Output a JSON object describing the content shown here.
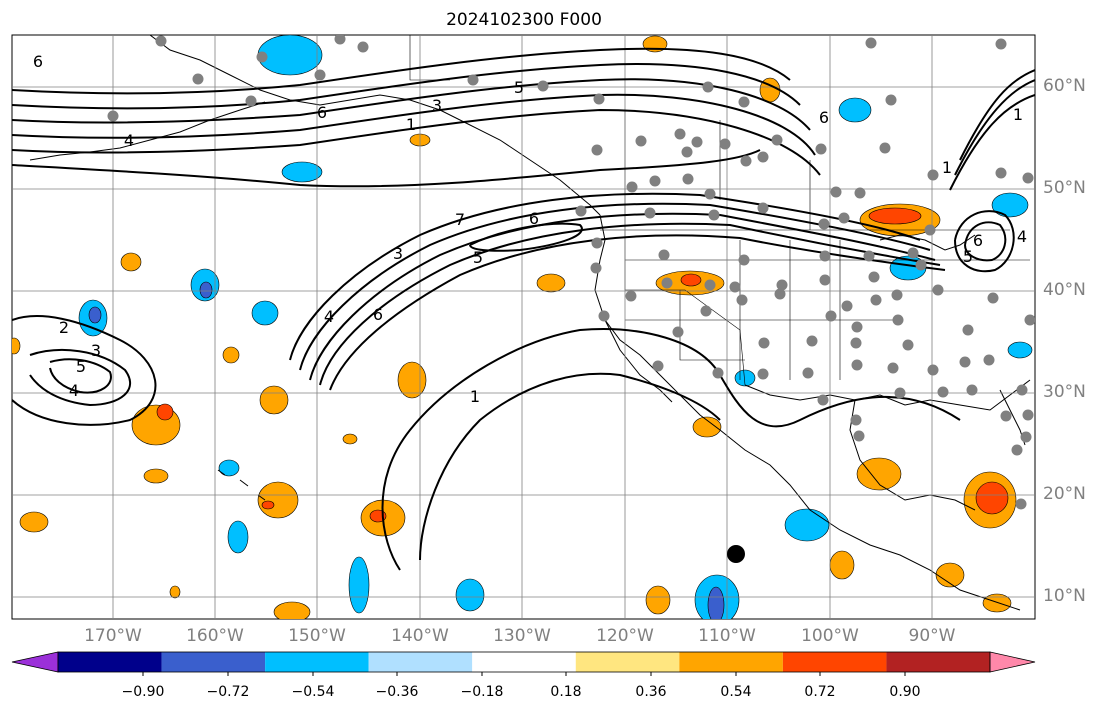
{
  "title": "2024102300 F000",
  "lat_labels": [
    "60°N",
    "50°N",
    "40°N",
    "30°N",
    "20°N",
    "10°N"
  ],
  "lon_labels": [
    "170°W",
    "160°W",
    "150°W",
    "140°W",
    "130°W",
    "120°W",
    "110°W",
    "100°W",
    "90°W"
  ],
  "contour_labels": [
    "6",
    "4",
    "6",
    "5",
    "3",
    "1",
    "6",
    "7",
    "6",
    "5",
    "3",
    "6",
    "4",
    "5",
    "3",
    "2",
    "4",
    "1",
    "5",
    "1",
    "1",
    "6",
    "4"
  ],
  "colorbar": {
    "ticks": [
      "−0.90",
      "−0.72",
      "−0.54",
      "−0.36",
      "−0.18",
      "0.18",
      "0.36",
      "0.54",
      "0.72",
      "0.90"
    ],
    "colors": [
      "#9b30d9",
      "#00008b",
      "#3a5fcd",
      "#00bfff",
      "#b0e0ff",
      "#ffffff",
      "#ffe680",
      "#ffa500",
      "#ff4500",
      "#b22222",
      "#ff88aa"
    ]
  }
}
